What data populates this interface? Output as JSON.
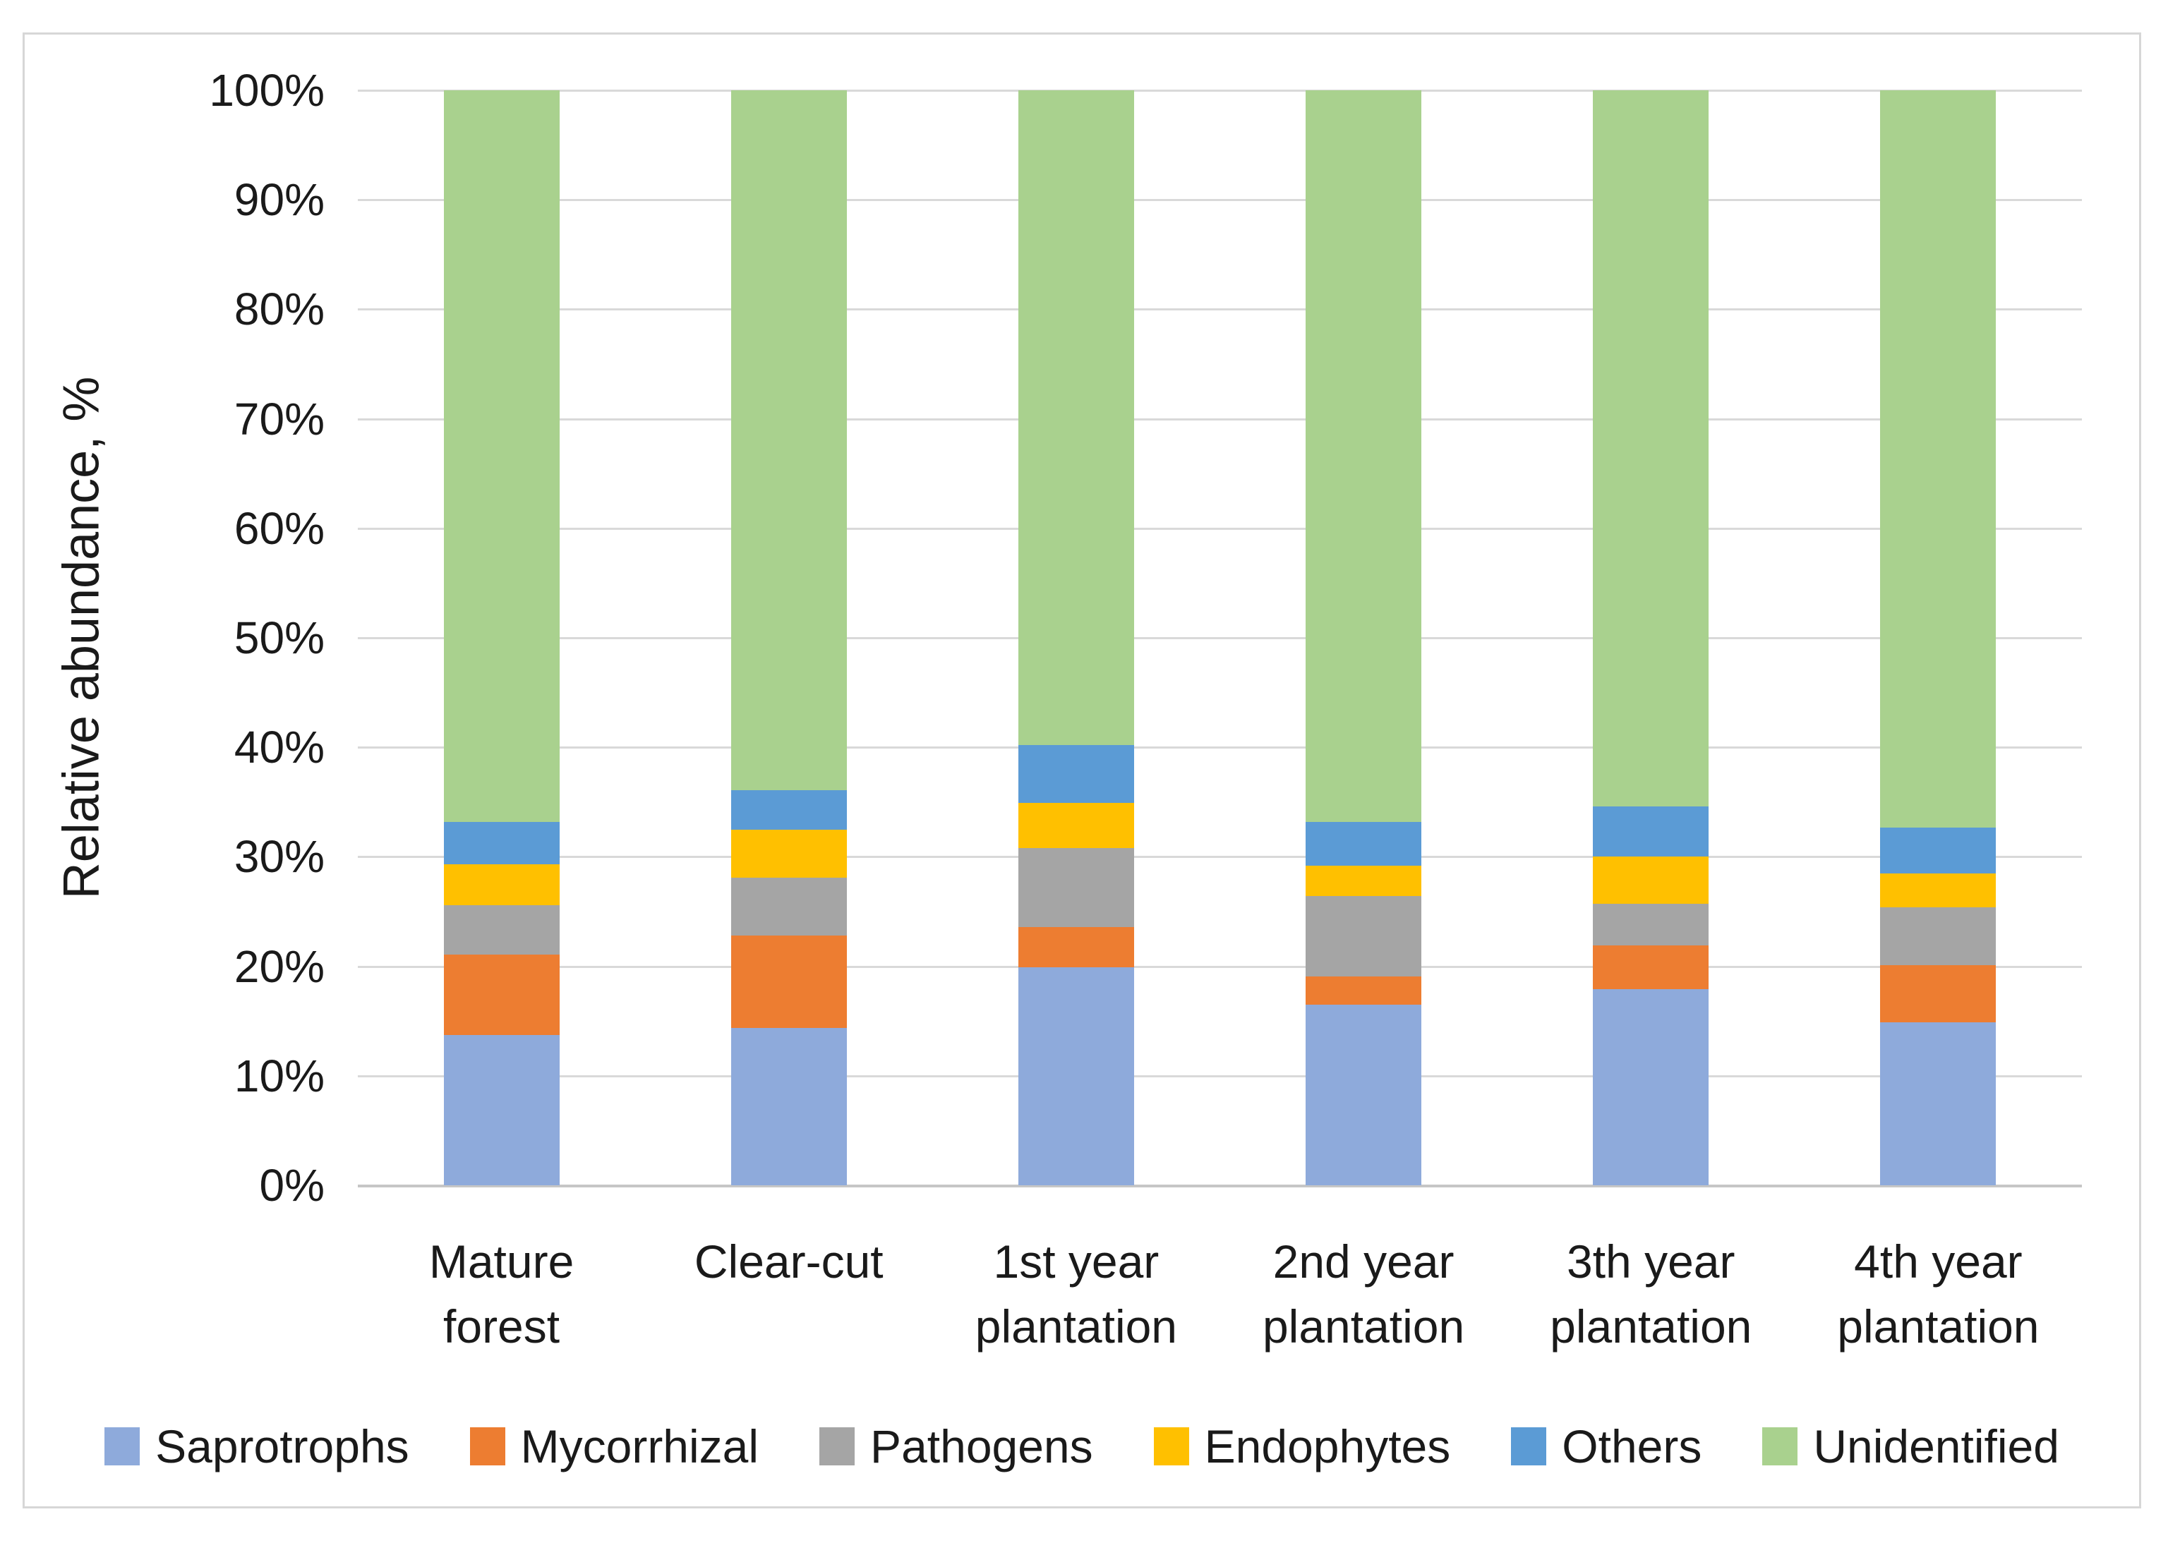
{
  "chart_data": {
    "type": "bar",
    "stacked": true,
    "orientation": "vertical",
    "title": "",
    "ylabel": "Relative abundance, %",
    "xlabel": "",
    "ylim": [
      0,
      100
    ],
    "y_step": 10,
    "y_tick_labels": [
      "0%",
      "10%",
      "20%",
      "30%",
      "40%",
      "50%",
      "60%",
      "70%",
      "80%",
      "90%",
      "100%"
    ],
    "grid": true,
    "legend_position": "bottom",
    "categories": [
      "Mature forest",
      "Clear-cut",
      "1st year plantation",
      "2nd year plantation",
      "3th year plantation",
      "4th year plantation"
    ],
    "series": [
      {
        "name": "Saprotrophs",
        "color": "#8EAADB",
        "values": [
          13.7,
          14.4,
          19.9,
          16.5,
          17.9,
          14.9
        ]
      },
      {
        "name": "Mycorrhizal",
        "color": "#ED7D31",
        "values": [
          7.4,
          8.4,
          3.7,
          2.6,
          4.0,
          5.2
        ]
      },
      {
        "name": "Pathogens",
        "color": "#A5A5A5",
        "values": [
          4.5,
          5.3,
          7.2,
          7.3,
          3.8,
          5.3
        ]
      },
      {
        "name": "Endophytes",
        "color": "#FFC000",
        "values": [
          3.7,
          4.4,
          4.1,
          2.8,
          4.3,
          3.1
        ]
      },
      {
        "name": "Others",
        "color": "#5B9BD5",
        "values": [
          3.9,
          3.6,
          5.3,
          4.0,
          4.6,
          4.2
        ]
      },
      {
        "name": "Unidentified",
        "color": "#A9D18E",
        "values": [
          66.8,
          63.9,
          59.8,
          66.8,
          65.4,
          67.3
        ]
      }
    ]
  },
  "style_colors": {
    "gridline": "#D9D9D9",
    "axis_line": "#C6C6C6",
    "chart_border": "#D7D7D7",
    "text": "#1A1A1A",
    "background": "#FFFFFF"
  }
}
